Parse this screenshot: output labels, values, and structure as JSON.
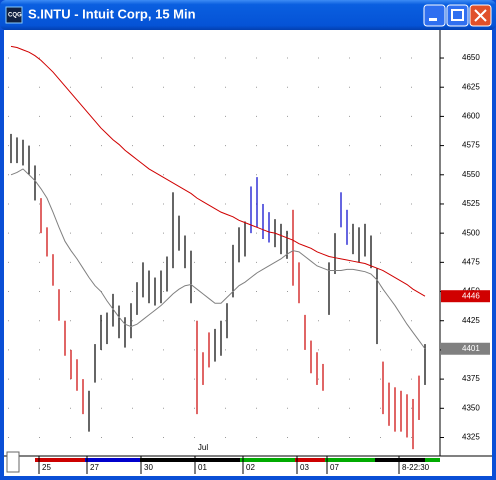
{
  "window": {
    "title": "S.INTU - Intuit Corp, 15 Min"
  },
  "chart_data": {
    "type": "hilo",
    "categories": [
      null,
      null,
      null,
      null,
      null,
      null,
      "25",
      null,
      null,
      null,
      null,
      null,
      null,
      null,
      "27",
      null,
      null,
      null,
      null,
      null,
      null,
      null,
      null,
      "30",
      null,
      null,
      null,
      null,
      null,
      null,
      null,
      null,
      "01",
      null,
      null,
      null,
      null,
      null,
      null,
      null,
      "02",
      null,
      null,
      null,
      null,
      null,
      null,
      null,
      null,
      "03",
      null,
      null,
      null,
      null,
      "07",
      null,
      null,
      null,
      null,
      null,
      null,
      null,
      null,
      null,
      null,
      null,
      "8-22:30",
      null,
      null,
      null
    ],
    "month_label": "Jul",
    "high": [
      4585,
      4582,
      4580,
      4575,
      4558,
      4530,
      4505,
      4482,
      4452,
      4425,
      4400,
      4392,
      4375,
      4365,
      4405,
      4430,
      4432,
      4448,
      4438,
      4428,
      4440,
      4458,
      4475,
      4468,
      4462,
      4468,
      4480,
      4535,
      4515,
      4498,
      4485,
      4425,
      4398,
      4415,
      4418,
      4425,
      4440,
      4490,
      4505,
      4510,
      4540,
      4548,
      4525,
      4518,
      4512,
      4508,
      4502,
      4520,
      4475,
      4430,
      4408,
      4398,
      4388,
      4475,
      4500,
      4535,
      4520,
      4508,
      4505,
      4508,
      4498,
      4470,
      4390,
      4372,
      4368,
      4365,
      4362,
      4358,
      4378,
      4405
    ],
    "low": [
      4560,
      4560,
      4558,
      4550,
      4528,
      4500,
      4480,
      4455,
      4425,
      4395,
      4375,
      4365,
      4345,
      4330,
      4372,
      4400,
      4405,
      4420,
      4410,
      4402,
      4410,
      4430,
      4445,
      4440,
      4438,
      4440,
      4450,
      4470,
      4485,
      4470,
      4440,
      4345,
      4370,
      4385,
      4390,
      4395,
      4410,
      4445,
      4475,
      4480,
      4500,
      4505,
      4495,
      4492,
      4488,
      4482,
      4478,
      4455,
      4440,
      4400,
      4380,
      4370,
      4365,
      4430,
      4465,
      4505,
      4490,
      4482,
      4475,
      4480,
      4470,
      4405,
      4345,
      4335,
      4330,
      4330,
      4325,
      4315,
      4340,
      4370
    ],
    "bar_colors": [
      "#000",
      "#000",
      "#000",
      "#000",
      "#000",
      "#c00",
      "#c00",
      "#c00",
      "#c00",
      "#c00",
      "#c00",
      "#c00",
      "#c00",
      "#000",
      "#000",
      "#000",
      "#000",
      "#000",
      "#000",
      "#000",
      "#000",
      "#000",
      "#000",
      "#000",
      "#000",
      "#000",
      "#000",
      "#000",
      "#000",
      "#000",
      "#000",
      "#c00",
      "#c00",
      "#c00",
      "#000",
      "#000",
      "#000",
      "#000",
      "#000",
      "#000",
      "#00c",
      "#00c",
      "#00c",
      "#00c",
      "#000",
      "#000",
      "#000",
      "#c00",
      "#c00",
      "#c00",
      "#c00",
      "#c00",
      "#c00",
      "#000",
      "#000",
      "#00c",
      "#00c",
      "#000",
      "#000",
      "#000",
      "#000",
      "#000",
      "#c00",
      "#c00",
      "#c00",
      "#c00",
      "#c00",
      "#c00",
      "#c00",
      "#000"
    ],
    "series": [
      {
        "color": "#d00000",
        "values": [
          4660,
          4659,
          4657,
          4655,
          4652,
          4648,
          4643,
          4638,
          4632,
          4626,
          4620,
          4614,
          4608,
          4602,
          4596,
          4590,
          4585,
          4580,
          4576,
          4571,
          4567,
          4563,
          4559,
          4555,
          4552,
          4549,
          4546,
          4543,
          4540,
          4537,
          4534,
          4530,
          4527,
          4524,
          4521,
          4518,
          4516,
          4514,
          4511,
          4509,
          4507,
          4505,
          4503,
          4501,
          4500,
          4498,
          4496,
          4494,
          4491,
          4489,
          4487,
          4484,
          4482,
          4480,
          4479,
          4478,
          4477,
          4476,
          4475,
          4474,
          4472,
          4470,
          4468,
          4465,
          4462,
          4459,
          4456,
          4452,
          4449,
          4446
        ]
      },
      {
        "color": "#808080",
        "values": [
          4550,
          4552,
          4555,
          4550,
          4545,
          4538,
          4530,
          4518,
          4505,
          4493,
          4485,
          4478,
          4470,
          4462,
          4455,
          4450,
          4442,
          4435,
          4428,
          4422,
          4420,
          4422,
          4426,
          4430,
          4434,
          4438,
          4443,
          4448,
          4452,
          4455,
          4456,
          4452,
          4448,
          4444,
          4440,
          4440,
          4445,
          4450,
          4455,
          4458,
          4462,
          4466,
          4469,
          4472,
          4475,
          4478,
          4482,
          4485,
          4484,
          4480,
          4476,
          4472,
          4470,
          4468,
          4468,
          4468,
          4469,
          4469,
          4468,
          4467,
          4465,
          4460,
          4452,
          4445,
          4438,
          4430,
          4422,
          4415,
          4408,
          4401
        ]
      }
    ],
    "ylim": [
      4310,
      4674
    ],
    "yticks": [
      4325,
      4350,
      4375,
      4400,
      4425,
      4450,
      4475,
      4500,
      4525,
      4550,
      4575,
      4600,
      4625,
      4650
    ],
    "grid": true
  }
}
